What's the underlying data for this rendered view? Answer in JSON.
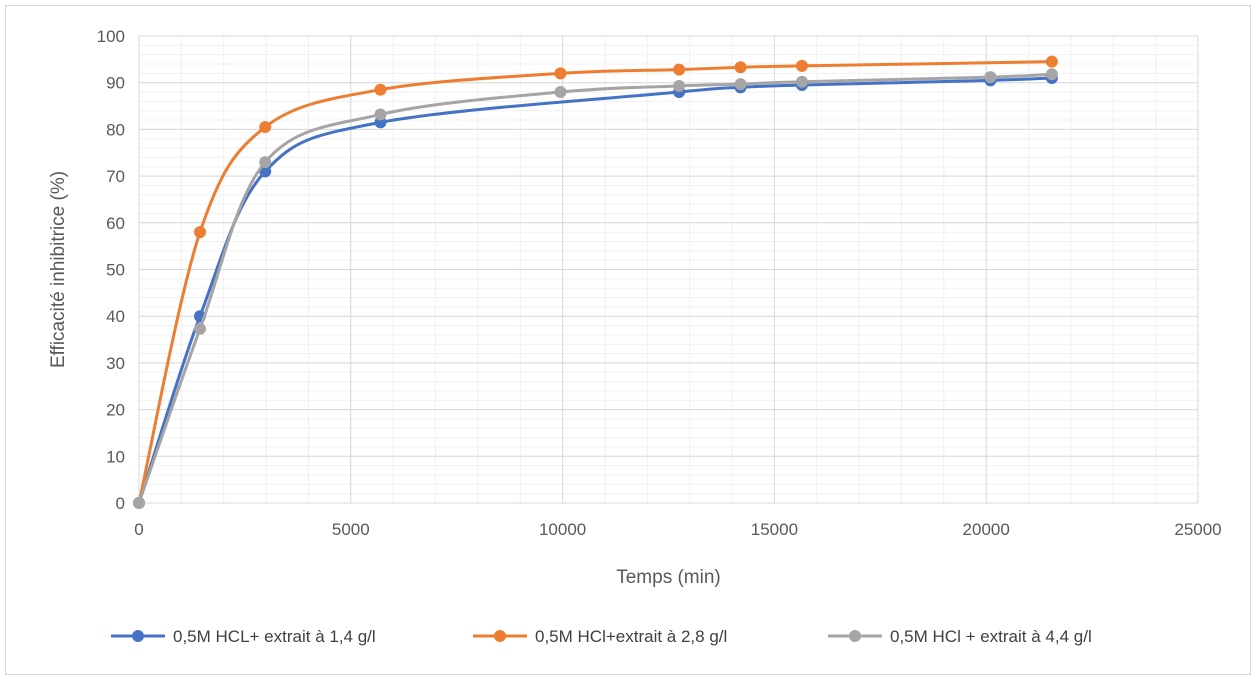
{
  "chart_data": {
    "type": "line",
    "title": "",
    "xlabel": "Temps  (min)",
    "ylabel": "Efficacité inhibitrice (%)",
    "xlim": [
      0,
      25000
    ],
    "ylim": [
      0,
      100
    ],
    "xticks": [
      0,
      5000,
      10000,
      15000,
      20000,
      25000
    ],
    "yticks": [
      0,
      10,
      20,
      30,
      40,
      50,
      60,
      70,
      80,
      90,
      100
    ],
    "grid": true,
    "minor_grid": true,
    "legend_position": "bottom",
    "smooth": true,
    "series": [
      {
        "name": "0,5M HCL+ extrait à 1,4 g/l",
        "color": "#4472c4",
        "x": [
          0,
          1440,
          2980,
          5700,
          12750,
          14200,
          15650,
          20100,
          21550
        ],
        "y": [
          0,
          40,
          71,
          81.5,
          88,
          89,
          89.5,
          90.5,
          91
        ]
      },
      {
        "name": "0,5M HCl+extrait à 2,8 g/l",
        "color": "#ed7d31",
        "x": [
          0,
          1440,
          2980,
          5700,
          9950,
          12750,
          14200,
          15650,
          21550
        ],
        "y": [
          0,
          58,
          80.5,
          88.5,
          92,
          92.8,
          93.3,
          93.6,
          94.5
        ]
      },
      {
        "name": "0,5M HCl + extrait à 4,4 g/l",
        "color": "#a5a5a5",
        "x": [
          0,
          1440,
          2980,
          5700,
          9950,
          12750,
          14200,
          15650,
          20100,
          21550
        ],
        "y": [
          0,
          37.3,
          73,
          83.2,
          88,
          89.3,
          89.7,
          90.2,
          91.2,
          91.8
        ]
      }
    ]
  }
}
